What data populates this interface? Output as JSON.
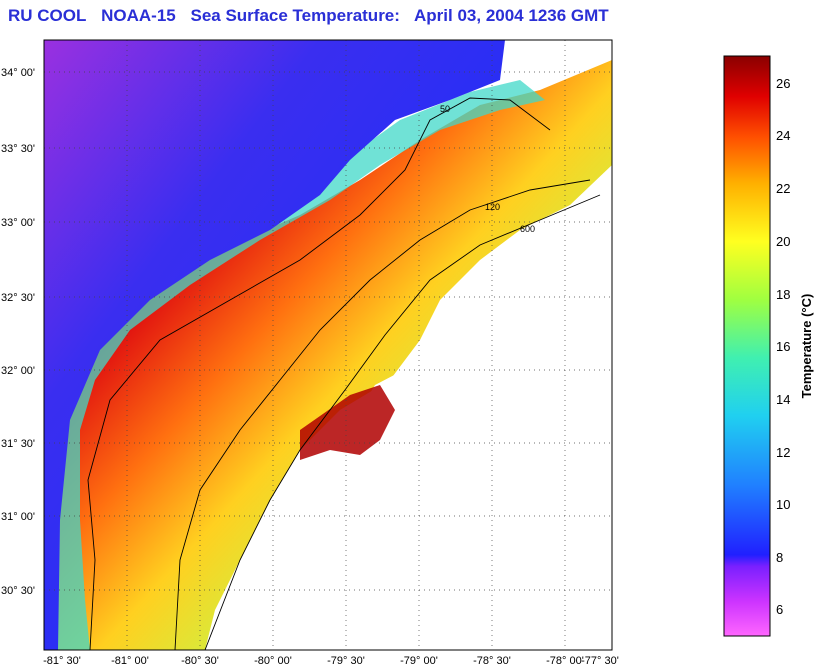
{
  "title": {
    "org": "RU COOL",
    "satellite": "NOAA-15",
    "product": "Sea Surface Temperature:",
    "datetime": "April 03, 2004 1236 GMT"
  },
  "map": {
    "lat_labels": [
      "34° 00'",
      "33° 30'",
      "33° 00'",
      "32° 30'",
      "32° 00'",
      "31° 30'",
      "31° 00'",
      "30° 30'"
    ],
    "lon_labels": [
      "-81° 30'",
      "-81° 00'",
      "-80° 30'",
      "-80° 00'",
      "-79° 30'",
      "-79° 00'",
      "-78° 30'",
      "-78° 00'",
      "-77° 30'"
    ],
    "contour_labels": {
      "shelf_50": "50",
      "shelf_120": "120",
      "slope_600": "600"
    }
  },
  "colorbar": {
    "label": "Temperature (°C)",
    "ticks": [
      "26",
      "24",
      "22",
      "20",
      "18",
      "16",
      "14",
      "12",
      "10",
      "8",
      "6"
    ],
    "colors": [
      "#ff66ff",
      "#cc33ff",
      "#2020ff",
      "#2080ff",
      "#20d0f0",
      "#40f0b0",
      "#a0ff40",
      "#ffff20",
      "#ffb000",
      "#ff5000",
      "#e00000",
      "#8a0000"
    ]
  }
}
